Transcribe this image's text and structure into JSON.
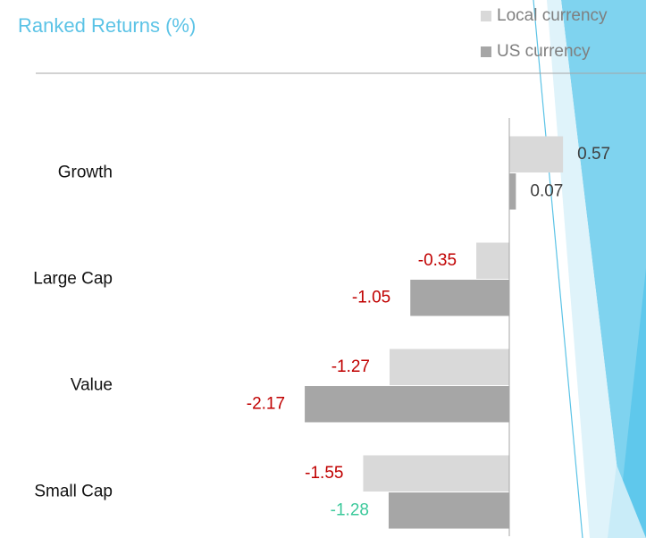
{
  "chart_data": {
    "type": "bar",
    "orientation": "horizontal",
    "title": "Ranked Returns (%)",
    "categories": [
      "Growth",
      "Large Cap",
      "Value",
      "Small Cap"
    ],
    "series": [
      {
        "name": "Local currency",
        "color": "#d9d9d9",
        "values": [
          0.57,
          -0.35,
          -1.27,
          -1.55
        ],
        "label_colors": [
          "#3f3f3f",
          "#c00000",
          "#c00000",
          "#c00000"
        ]
      },
      {
        "name": "US currency",
        "color": "#a6a6a6",
        "values": [
          0.07,
          -1.05,
          -2.17,
          -1.28
        ],
        "label_colors": [
          "#3f3f3f",
          "#c00000",
          "#c00000",
          "#3cc99b"
        ]
      }
    ],
    "xlim": [
      -3,
      1
    ],
    "legend": "top-right",
    "title_color": "#5bc3e6"
  }
}
